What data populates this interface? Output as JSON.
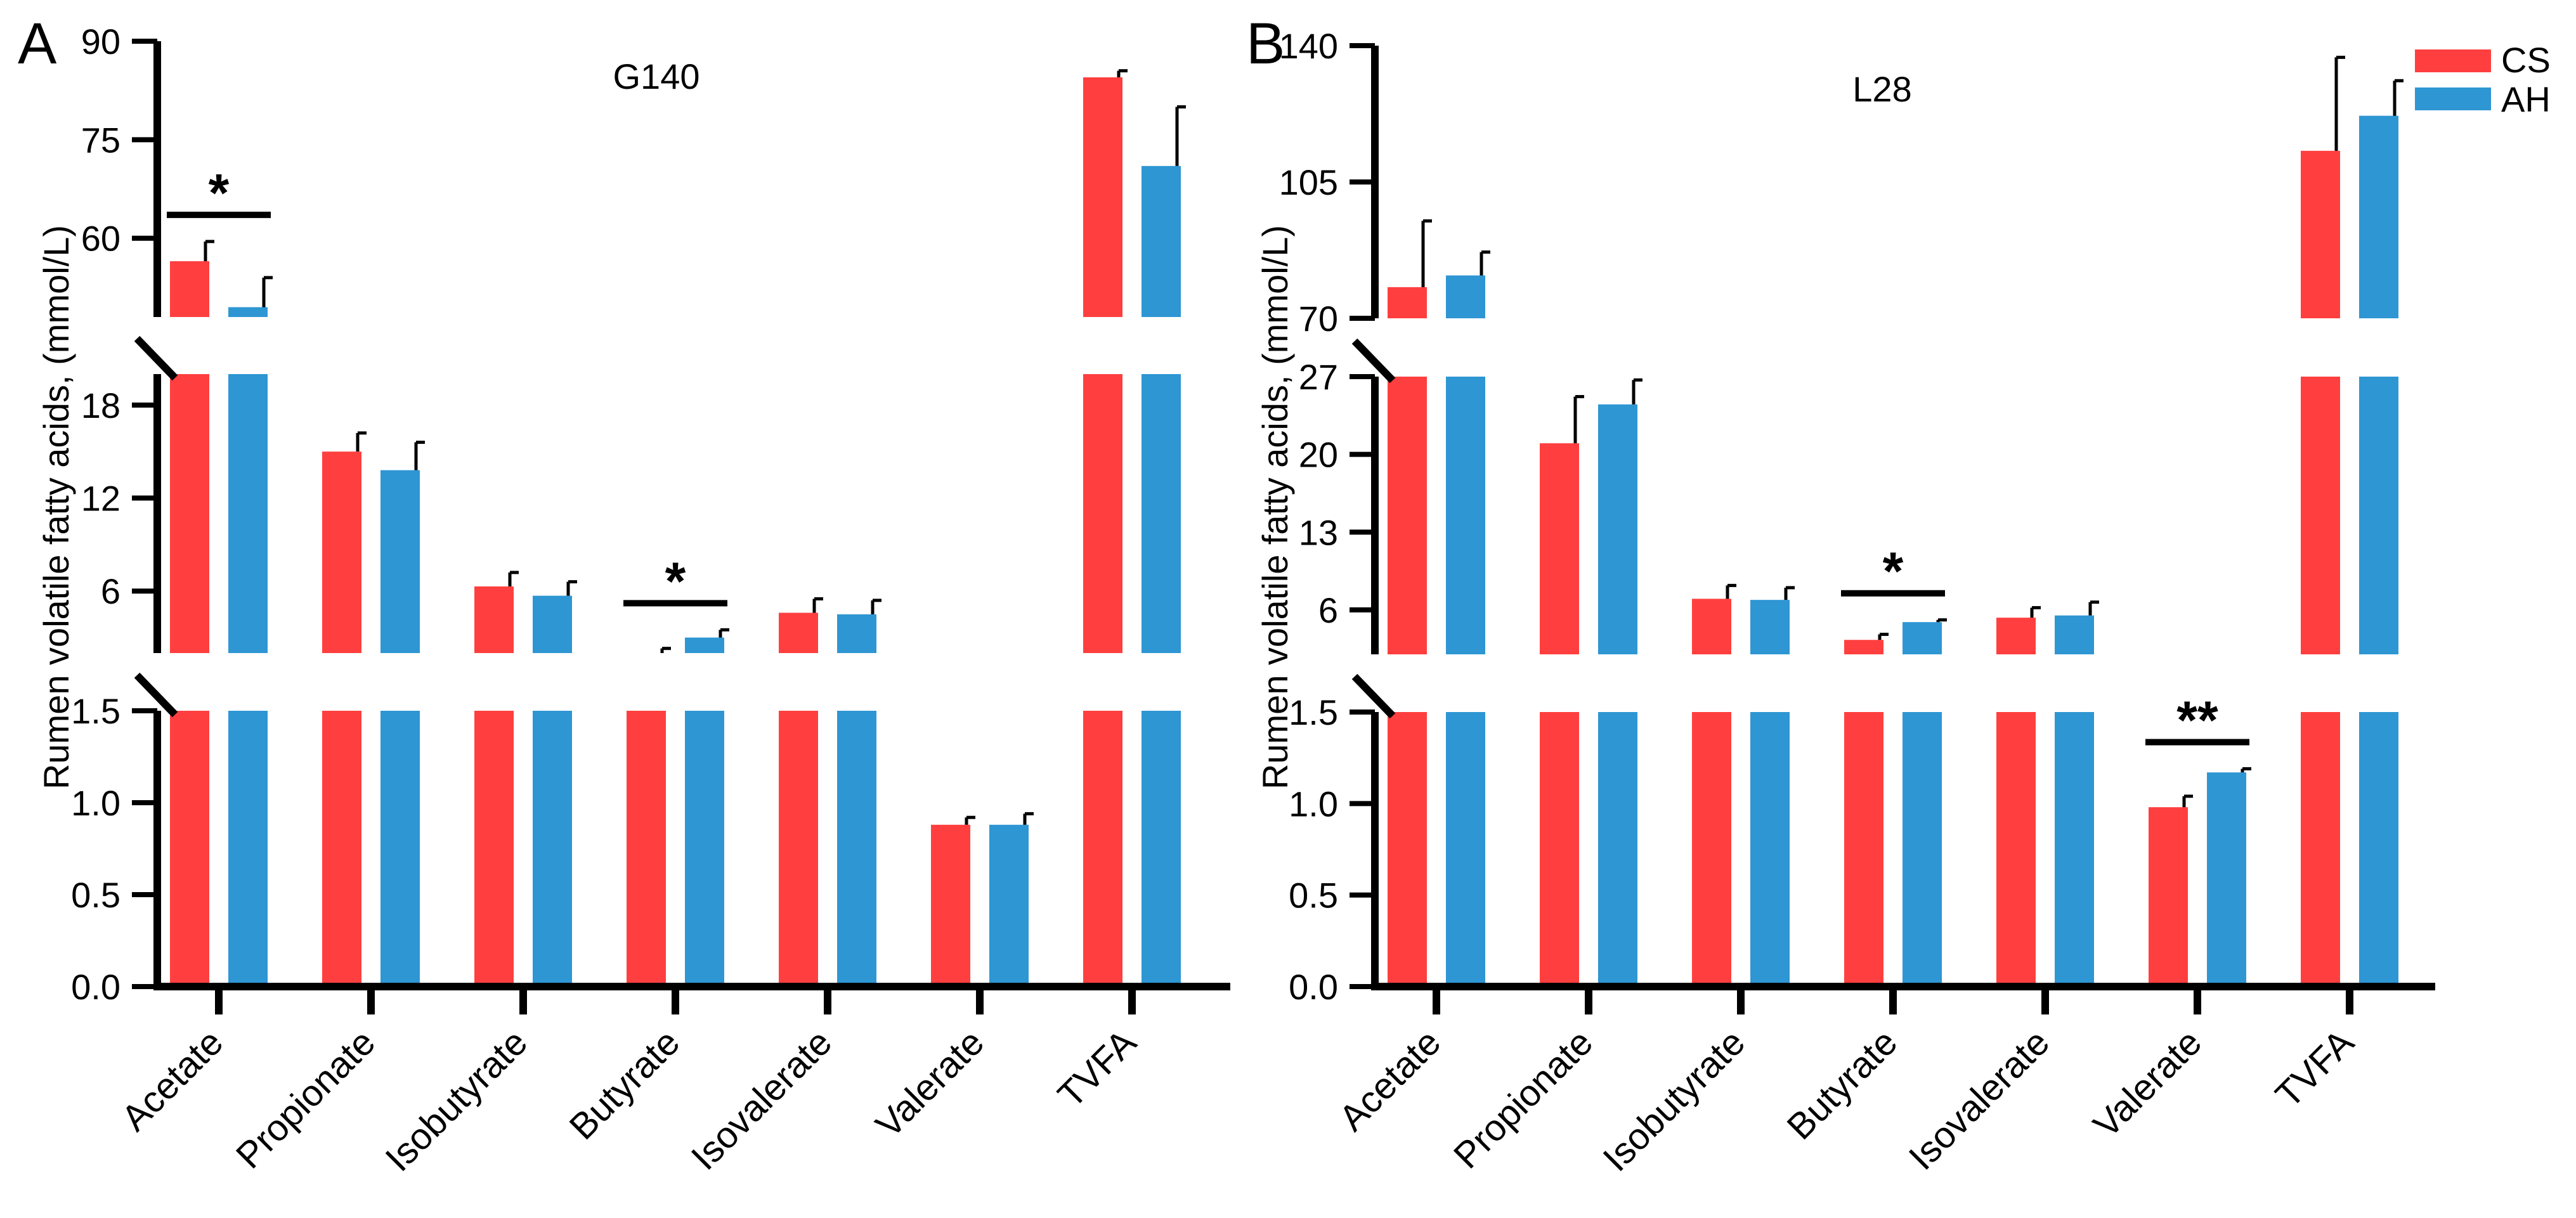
{
  "chart_data": [
    {
      "type": "bar",
      "panel_label": "A",
      "title": "G140",
      "ylabel": "Rumen volatile fatty acids, (mmol/L)",
      "xlabel": "",
      "categories": [
        "Acetate",
        "Propionate",
        "Isobutyrate",
        "Butyrate",
        "Isovalerate",
        "Valerate",
        "TVFA"
      ],
      "series": [
        {
          "name": "CS",
          "color": "#ff3f3f",
          "values": [
            56.5,
            15.0,
            6.3,
            2.0,
            4.6,
            0.88,
            84.5
          ],
          "errors": [
            3.0,
            1.2,
            0.9,
            0.3,
            0.9,
            0.04,
            1.0
          ]
        },
        {
          "name": "AH",
          "color": "#2e96d3",
          "values": [
            49.5,
            13.8,
            5.7,
            3.0,
            4.5,
            0.88,
            71.0
          ],
          "errors": [
            4.5,
            1.8,
            0.9,
            0.5,
            0.9,
            0.06,
            9.0
          ]
        }
      ],
      "axis_segments": [
        {
          "ylim": [
            0,
            1.5
          ],
          "ticks": [
            "0.0",
            "0.5",
            "1.0",
            "1.5"
          ]
        },
        {
          "ylim": [
            2,
            20
          ],
          "ticks": [
            "6",
            "12",
            "18"
          ]
        },
        {
          "ylim": [
            48,
            90
          ],
          "ticks": [
            "60",
            "75",
            "90"
          ]
        }
      ],
      "significance": [
        {
          "category": "Acetate",
          "label": "*"
        },
        {
          "category": "Butyrate",
          "label": "*"
        }
      ]
    },
    {
      "type": "bar",
      "panel_label": "B",
      "title": "L28",
      "ylabel": "Rumen volatile fatty acids, (mmol/L)",
      "xlabel": "",
      "categories": [
        "Acetate",
        "Propionate",
        "Isobutyrate",
        "Butyrate",
        "Isovalerate",
        "Valerate",
        "TVFA"
      ],
      "series": [
        {
          "name": "CS",
          "color": "#ff3f3f",
          "values": [
            78.0,
            21.0,
            7.0,
            3.3,
            5.3,
            0.98,
            113.0
          ],
          "errors": [
            17.0,
            4.2,
            1.2,
            0.5,
            0.9,
            0.06,
            24.0
          ]
        },
        {
          "name": "AH",
          "color": "#2e96d3",
          "values": [
            81.0,
            24.5,
            6.9,
            4.9,
            5.5,
            1.17,
            122.0
          ],
          "errors": [
            6.0,
            2.2,
            1.1,
            0.2,
            1.2,
            0.02,
            9.0
          ]
        }
      ],
      "axis_segments": [
        {
          "ylim": [
            0,
            1.5
          ],
          "ticks": [
            "0.0",
            "0.5",
            "1.0",
            "1.5"
          ]
        },
        {
          "ylim": [
            2,
            27
          ],
          "ticks": [
            "6",
            "13",
            "20",
            "27"
          ]
        },
        {
          "ylim": [
            70,
            140
          ],
          "ticks": [
            "70",
            "105",
            "140"
          ]
        }
      ],
      "significance": [
        {
          "category": "Butyrate",
          "label": "*"
        },
        {
          "category": "Valerate",
          "label": "**"
        }
      ]
    }
  ],
  "legend": {
    "items": [
      {
        "name": "CS",
        "color": "#ff3f3f"
      },
      {
        "name": "AH",
        "color": "#2e96d3"
      }
    ],
    "position": "top-right"
  }
}
